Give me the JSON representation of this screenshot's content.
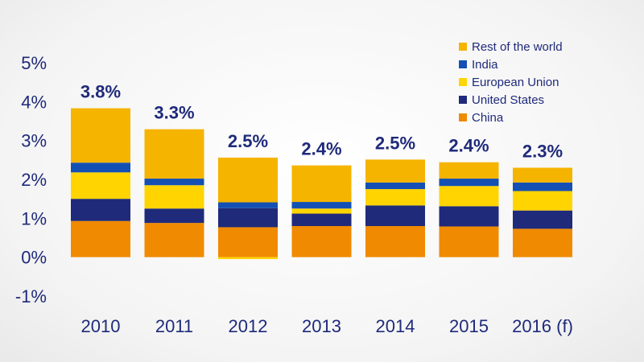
{
  "chart_data": {
    "type": "bar",
    "stacked": true,
    "title": "",
    "xlabel": "",
    "ylabel": "",
    "ylim": [
      -1,
      5
    ],
    "y_ticks": [
      "-1%",
      "0%",
      "1%",
      "2%",
      "3%",
      "4%",
      "5%"
    ],
    "y_tick_values": [
      -1,
      0,
      1,
      2,
      3,
      4,
      5
    ],
    "grid": false,
    "legend_position": "top-right",
    "categories": [
      "2010",
      "2011",
      "2012",
      "2013",
      "2014",
      "2015",
      "2016 (f)"
    ],
    "totals": [
      "3.8%",
      "3.3%",
      "2.5%",
      "2.4%",
      "2.5%",
      "2.4%",
      "2.3%"
    ],
    "series": [
      {
        "name": "China",
        "color": "#f08a00",
        "values": [
          0.93,
          0.88,
          0.77,
          0.8,
          0.8,
          0.79,
          0.73
        ]
      },
      {
        "name": "United States",
        "color": "#1f2a7a",
        "values": [
          0.57,
          0.37,
          0.49,
          0.32,
          0.53,
          0.52,
          0.47
        ]
      },
      {
        "name": "European Union",
        "color": "#ffd400",
        "values": [
          0.68,
          0.6,
          -0.05,
          0.13,
          0.42,
          0.52,
          0.5
        ]
      },
      {
        "name": "India",
        "color": "#1450b4",
        "values": [
          0.25,
          0.17,
          0.15,
          0.17,
          0.17,
          0.19,
          0.22
        ]
      },
      {
        "name": "Rest of the world",
        "color": "#f5b400",
        "values": [
          1.4,
          1.27,
          1.15,
          0.94,
          0.59,
          0.42,
          0.38
        ]
      }
    ],
    "legend_order": [
      "Rest of the world",
      "India",
      "European Union",
      "United States",
      "China"
    ]
  }
}
